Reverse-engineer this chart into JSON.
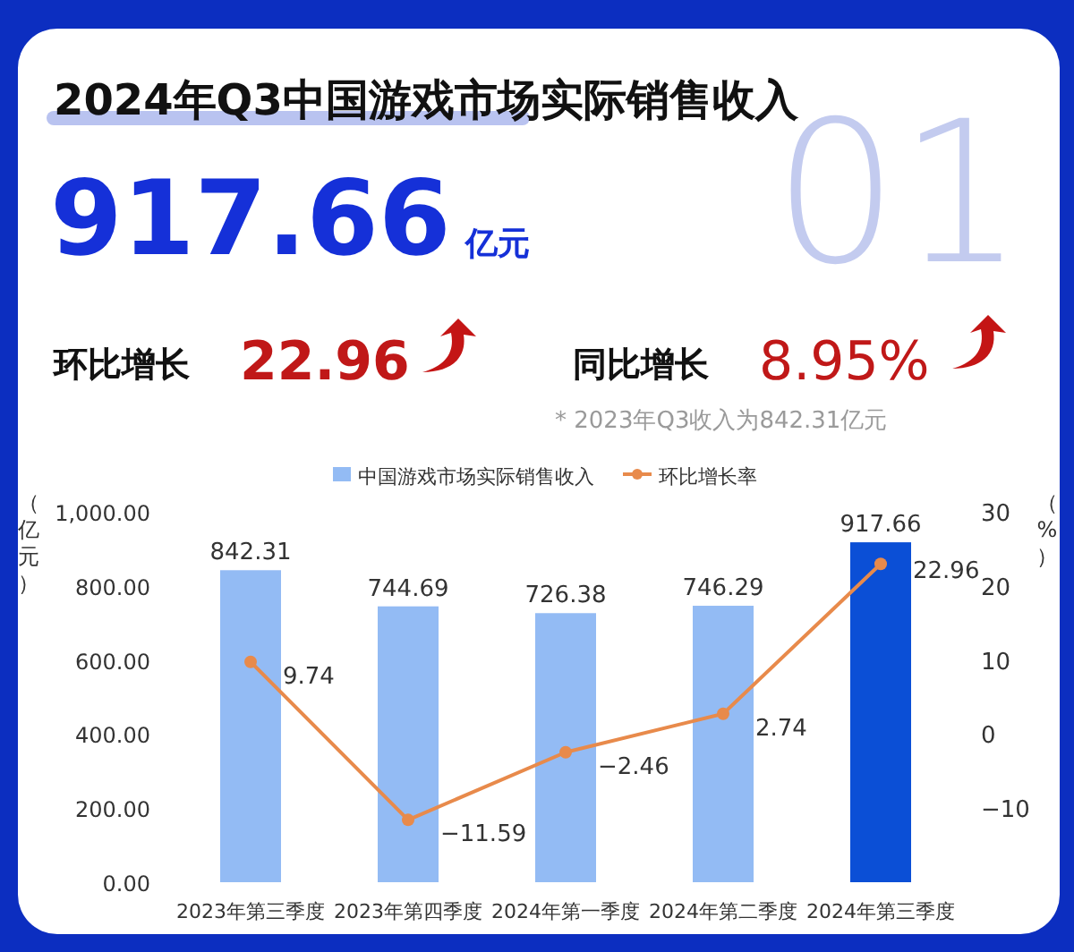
{
  "chart_data": {
    "type": "bar",
    "title": "2024年Q3中国游戏市场实际销售收入",
    "annotations": [
      "917.66",
      "亿元",
      "环比增长",
      "22.96",
      "同比增长",
      "8.95%",
      "* 2023年Q3收入为842.31亿元",
      "01"
    ],
    "ylabel": "（亿元）",
    "y2label": "（%）",
    "categories": [
      "2023年第三季度",
      "2023年第四季度",
      "2024年第一季度",
      "2024年第二季度",
      "2024年第三季度"
    ],
    "series": [
      {
        "name": "中国游戏市场实际销售收入",
        "colors": [
          "#93bbf4",
          "#93bbf4",
          "#93bbf4",
          "#93bbf4",
          "#0b4fd6"
        ],
        "color": "#93bbf4",
        "values": [
          842.31,
          744.69,
          726.38,
          746.29,
          917.66
        ]
      },
      {
        "name": "环比增长率",
        "type": "line",
        "axis": "y2",
        "color": "#e88a4b",
        "marker": "circle",
        "values": [
          9.74,
          -11.59,
          -2.46,
          2.74,
          22.96
        ]
      }
    ],
    "ylim": [
      0,
      1000
    ],
    "yticks": [
      {
        "value": 0,
        "label": "0.00"
      },
      {
        "value": 200,
        "label": "200.00"
      },
      {
        "value": 400,
        "label": "400.00"
      },
      {
        "value": 600,
        "label": "600.00"
      },
      {
        "value": 800,
        "label": "800.00"
      },
      {
        "value": 1000,
        "label": "1,000.00"
      }
    ],
    "y2lim": [
      -20,
      30
    ],
    "y2ticks": [
      -10,
      0,
      10,
      20,
      30
    ],
    "data_labels": true,
    "legend": "top",
    "grid": false
  }
}
